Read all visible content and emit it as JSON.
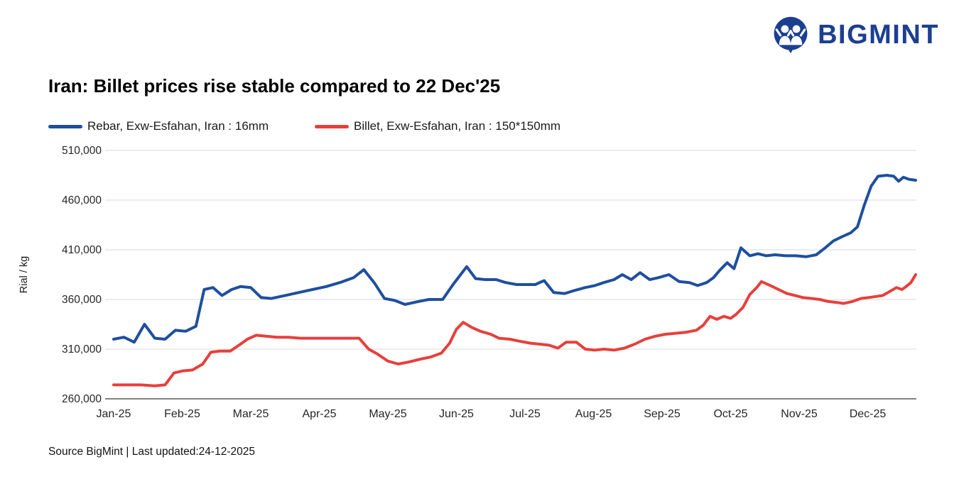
{
  "logo": {
    "text": "BIGMINT",
    "brand_color": "#1c3f90"
  },
  "footer": {
    "source": "Source BigMint | Last updated:24-12-2025"
  },
  "chart_data": {
    "type": "line",
    "title": "Iran: Billet prices rise stable compared to 22 Dec'25",
    "ylabel": "Rial / kg",
    "xlabel": "",
    "ylim": [
      260000,
      510000
    ],
    "yticks": [
      260000,
      310000,
      360000,
      410000,
      460000,
      510000
    ],
    "x_categories": [
      "Jan-25",
      "Feb-25",
      "Mar-25",
      "Apr-25",
      "May-25",
      "Jun-25",
      "Jul-25",
      "Aug-25",
      "Sep-25",
      "Oct-25",
      "Nov-25",
      "Dec-25"
    ],
    "grid": "horizontal-only",
    "legend_position": "top-left",
    "series": [
      {
        "name": "Rebar, Exw-Esfahan, Iran : 16mm",
        "color": "#1e4f9f",
        "unit": "Rial/kg",
        "points": [
          [
            0.0,
            320000
          ],
          [
            0.15,
            322000
          ],
          [
            0.3,
            317000
          ],
          [
            0.45,
            335000
          ],
          [
            0.6,
            321000
          ],
          [
            0.75,
            320000
          ],
          [
            0.9,
            329000
          ],
          [
            1.05,
            328000
          ],
          [
            1.2,
            333000
          ],
          [
            1.32,
            370000
          ],
          [
            1.45,
            372000
          ],
          [
            1.58,
            364000
          ],
          [
            1.72,
            370000
          ],
          [
            1.85,
            373000
          ],
          [
            2.0,
            372000
          ],
          [
            2.15,
            362000
          ],
          [
            2.3,
            361000
          ],
          [
            2.5,
            364000
          ],
          [
            2.7,
            367000
          ],
          [
            2.9,
            370000
          ],
          [
            3.1,
            373000
          ],
          [
            3.3,
            377000
          ],
          [
            3.5,
            382000
          ],
          [
            3.65,
            390000
          ],
          [
            3.8,
            377000
          ],
          [
            3.95,
            361000
          ],
          [
            4.1,
            359000
          ],
          [
            4.25,
            355000
          ],
          [
            4.45,
            358000
          ],
          [
            4.6,
            360000
          ],
          [
            4.8,
            360000
          ],
          [
            4.95,
            375000
          ],
          [
            5.05,
            384000
          ],
          [
            5.15,
            393000
          ],
          [
            5.28,
            381000
          ],
          [
            5.42,
            380000
          ],
          [
            5.58,
            380000
          ],
          [
            5.72,
            377000
          ],
          [
            5.88,
            375000
          ],
          [
            6.02,
            375000
          ],
          [
            6.15,
            375000
          ],
          [
            6.28,
            379000
          ],
          [
            6.42,
            367000
          ],
          [
            6.58,
            366000
          ],
          [
            6.72,
            369000
          ],
          [
            6.88,
            372000
          ],
          [
            7.02,
            374000
          ],
          [
            7.15,
            377000
          ],
          [
            7.3,
            380000
          ],
          [
            7.42,
            385000
          ],
          [
            7.55,
            380000
          ],
          [
            7.68,
            387000
          ],
          [
            7.82,
            380000
          ],
          [
            7.95,
            382000
          ],
          [
            8.1,
            385000
          ],
          [
            8.25,
            378000
          ],
          [
            8.4,
            377000
          ],
          [
            8.52,
            374000
          ],
          [
            8.65,
            377000
          ],
          [
            8.75,
            382000
          ],
          [
            8.85,
            390000
          ],
          [
            8.95,
            397000
          ],
          [
            9.05,
            391000
          ],
          [
            9.15,
            412000
          ],
          [
            9.28,
            404000
          ],
          [
            9.4,
            406000
          ],
          [
            9.52,
            404000
          ],
          [
            9.65,
            405000
          ],
          [
            9.8,
            404000
          ],
          [
            9.95,
            404000
          ],
          [
            10.1,
            403000
          ],
          [
            10.25,
            405000
          ],
          [
            10.38,
            412000
          ],
          [
            10.5,
            419000
          ],
          [
            10.62,
            423000
          ],
          [
            10.75,
            427000
          ],
          [
            10.85,
            433000
          ],
          [
            10.95,
            455000
          ],
          [
            11.05,
            474000
          ],
          [
            11.15,
            484000
          ],
          [
            11.28,
            485000
          ],
          [
            11.38,
            484000
          ],
          [
            11.45,
            479000
          ],
          [
            11.52,
            483000
          ],
          [
            11.6,
            481000
          ],
          [
            11.7,
            480000
          ]
        ]
      },
      {
        "name": "Billet, Exw-Esfahan, Iran : 150*150mm",
        "color": "#e6403c",
        "unit": "Rial/kg",
        "points": [
          [
            0.0,
            274000
          ],
          [
            0.2,
            274000
          ],
          [
            0.4,
            274000
          ],
          [
            0.6,
            273000
          ],
          [
            0.75,
            274000
          ],
          [
            0.88,
            286000
          ],
          [
            1.0,
            288000
          ],
          [
            1.15,
            289000
          ],
          [
            1.3,
            295000
          ],
          [
            1.42,
            307000
          ],
          [
            1.55,
            308000
          ],
          [
            1.7,
            308000
          ],
          [
            1.85,
            315000
          ],
          [
            1.95,
            320000
          ],
          [
            2.08,
            324000
          ],
          [
            2.22,
            323000
          ],
          [
            2.38,
            322000
          ],
          [
            2.55,
            322000
          ],
          [
            2.72,
            321000
          ],
          [
            2.9,
            321000
          ],
          [
            3.08,
            321000
          ],
          [
            3.25,
            321000
          ],
          [
            3.42,
            321000
          ],
          [
            3.58,
            321000
          ],
          [
            3.72,
            310000
          ],
          [
            3.85,
            305000
          ],
          [
            4.0,
            298000
          ],
          [
            4.15,
            295000
          ],
          [
            4.3,
            297000
          ],
          [
            4.48,
            300000
          ],
          [
            4.62,
            302000
          ],
          [
            4.78,
            306000
          ],
          [
            4.9,
            316000
          ],
          [
            5.0,
            330000
          ],
          [
            5.1,
            337000
          ],
          [
            5.22,
            332000
          ],
          [
            5.35,
            328000
          ],
          [
            5.5,
            325000
          ],
          [
            5.62,
            321000
          ],
          [
            5.78,
            320000
          ],
          [
            5.92,
            318000
          ],
          [
            6.08,
            316000
          ],
          [
            6.22,
            315000
          ],
          [
            6.35,
            314000
          ],
          [
            6.48,
            311000
          ],
          [
            6.6,
            317000
          ],
          [
            6.75,
            317000
          ],
          [
            6.88,
            310000
          ],
          [
            7.02,
            309000
          ],
          [
            7.15,
            310000
          ],
          [
            7.3,
            309000
          ],
          [
            7.45,
            311000
          ],
          [
            7.6,
            315000
          ],
          [
            7.75,
            320000
          ],
          [
            7.9,
            323000
          ],
          [
            8.05,
            325000
          ],
          [
            8.2,
            326000
          ],
          [
            8.35,
            327000
          ],
          [
            8.5,
            329000
          ],
          [
            8.6,
            334000
          ],
          [
            8.7,
            343000
          ],
          [
            8.8,
            340000
          ],
          [
            8.9,
            343000
          ],
          [
            9.0,
            341000
          ],
          [
            9.08,
            345000
          ],
          [
            9.18,
            352000
          ],
          [
            9.28,
            365000
          ],
          [
            9.38,
            372000
          ],
          [
            9.45,
            378000
          ],
          [
            9.58,
            374000
          ],
          [
            9.7,
            370000
          ],
          [
            9.82,
            366000
          ],
          [
            9.94,
            364000
          ],
          [
            10.05,
            362000
          ],
          [
            10.18,
            361000
          ],
          [
            10.3,
            360000
          ],
          [
            10.42,
            358000
          ],
          [
            10.55,
            357000
          ],
          [
            10.65,
            356000
          ],
          [
            10.78,
            358000
          ],
          [
            10.9,
            361000
          ],
          [
            11.02,
            362000
          ],
          [
            11.12,
            363000
          ],
          [
            11.22,
            364000
          ],
          [
            11.32,
            368000
          ],
          [
            11.42,
            372000
          ],
          [
            11.5,
            370000
          ],
          [
            11.56,
            373000
          ],
          [
            11.63,
            377000
          ],
          [
            11.7,
            385000
          ]
        ]
      }
    ]
  }
}
